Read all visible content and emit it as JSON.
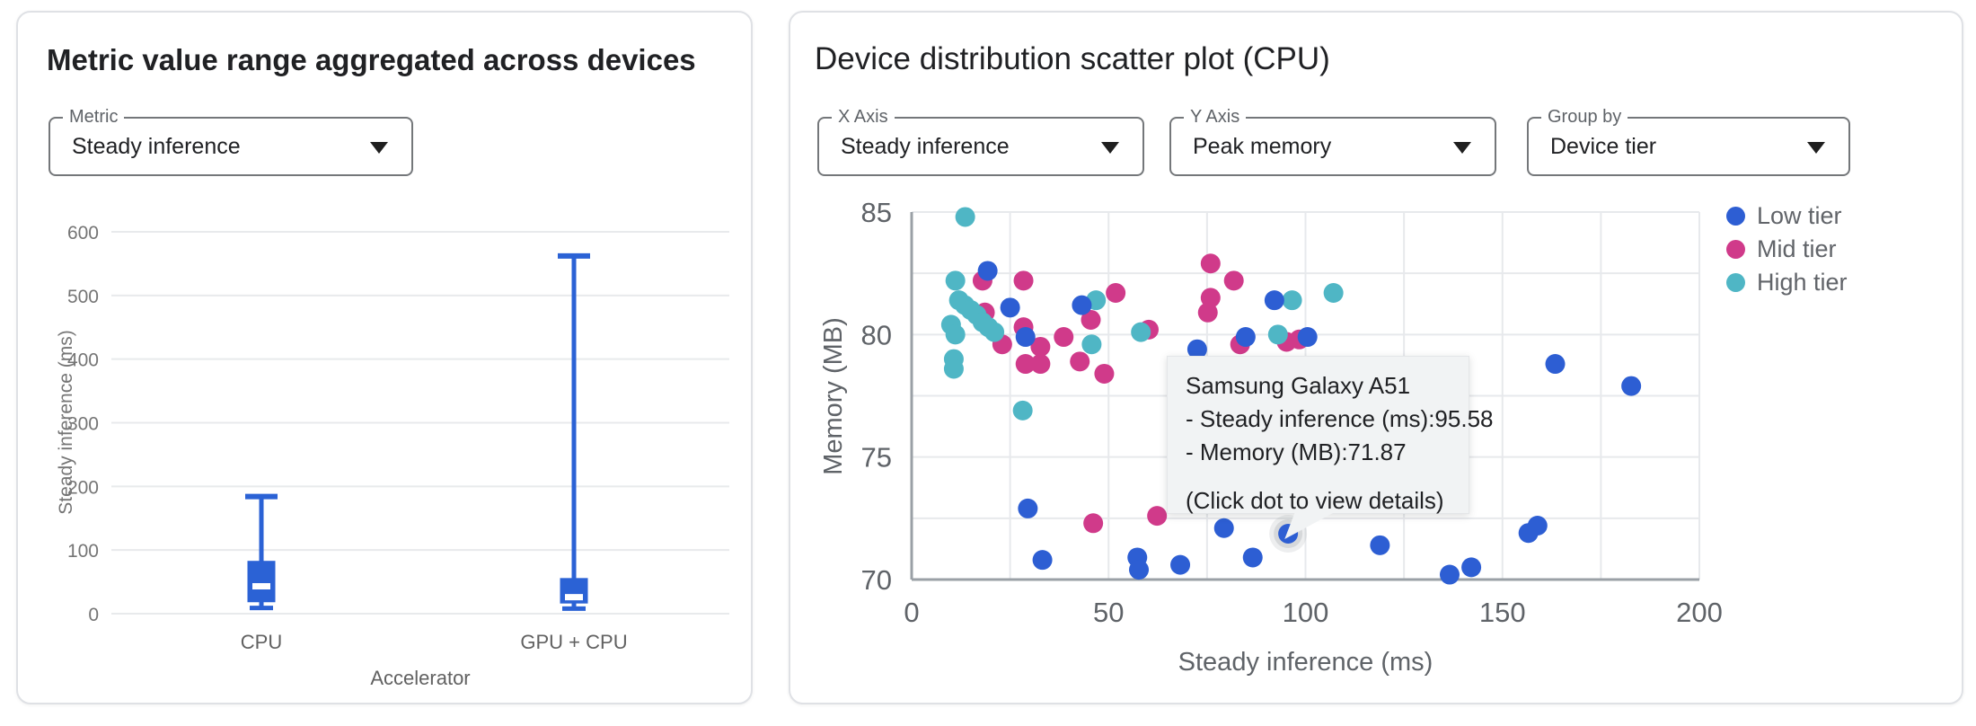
{
  "left_panel": {
    "title": "Metric value range aggregated across devices",
    "metric_dropdown": {
      "label": "Metric",
      "value": "Steady inference"
    }
  },
  "right_panel": {
    "title": "Device distribution scatter plot (CPU)",
    "controls": [
      {
        "label": "X Axis",
        "value": "Steady inference"
      },
      {
        "label": "Y Axis",
        "value": "Peak memory"
      },
      {
        "label": "Group by",
        "value": "Device tier"
      }
    ],
    "legend": [
      {
        "label": "Low tier",
        "color": "#2d5ed3"
      },
      {
        "label": "Mid tier",
        "color": "#d03a8a"
      },
      {
        "label": "High tier",
        "color": "#4fb6c5"
      }
    ],
    "tooltip": {
      "title": "Samsung Galaxy A51",
      "line1": "- Steady inference (ms):95.58",
      "line2": "- Memory (MB):71.87",
      "hint": "(Click dot to view details)"
    }
  },
  "chart_data": [
    {
      "type": "boxplot",
      "title": "Metric value range aggregated across devices",
      "xlabel": "Accelerator",
      "ylabel": "Steady inference (ms)",
      "categories": [
        "CPU",
        "GPU + CPU"
      ],
      "ylim": [
        0,
        600
      ],
      "yticks": [
        0,
        100,
        200,
        300,
        400,
        500,
        600
      ],
      "grid": true,
      "color": "#2b62d5",
      "boxes": [
        {
          "category": "CPU",
          "min": 9,
          "q1": 18,
          "median": 43,
          "q3": 83,
          "max": 184
        },
        {
          "category": "GPU + CPU",
          "min": 8,
          "q1": 16,
          "median": 26,
          "q3": 56,
          "max": 562
        }
      ]
    },
    {
      "type": "scatter",
      "xlabel": "Steady inference (ms)",
      "ylabel": "Memory (MB)",
      "xlim": [
        0,
        200
      ],
      "ylim": [
        70,
        85
      ],
      "xticks": [
        0,
        50,
        100,
        150,
        200
      ],
      "yticks": [
        70,
        75,
        80,
        85
      ],
      "grid": true,
      "legend_position": "right",
      "series": [
        {
          "name": "Low tier",
          "color": "#2d5ed3",
          "points": [
            [
              19.3,
              82.6
            ],
            [
              25,
              81.1
            ],
            [
              28.9,
              79.9
            ],
            [
              43.2,
              81.2
            ],
            [
              72.5,
              79.4
            ],
            [
              84.8,
              79.9
            ],
            [
              92.1,
              81.4
            ],
            [
              100.5,
              79.9
            ],
            [
              29.5,
              72.9
            ],
            [
              33.2,
              70.8
            ],
            [
              57.3,
              70.9
            ],
            [
              57.7,
              70.4
            ],
            [
              68.2,
              70.6
            ],
            [
              79.3,
              72.1
            ],
            [
              86.6,
              70.9
            ],
            [
              118.9,
              71.4
            ],
            [
              136.6,
              70.2
            ],
            [
              142.1,
              70.5
            ],
            [
              156.6,
              71.9
            ],
            [
              158.9,
              72.2
            ],
            [
              163.4,
              78.8
            ],
            [
              182.7,
              77.9
            ]
          ]
        },
        {
          "name": "Mid tier",
          "color": "#d03a8a",
          "points": [
            [
              18,
              82.2
            ],
            [
              28.4,
              82.2
            ],
            [
              18.6,
              80.9
            ],
            [
              23,
              79.6
            ],
            [
              28.4,
              80.3
            ],
            [
              32.7,
              79.5
            ],
            [
              28.9,
              78.8
            ],
            [
              32.7,
              78.8
            ],
            [
              38.6,
              79.9
            ],
            [
              42.7,
              78.9
            ],
            [
              45.5,
              80.6
            ],
            [
              48.9,
              78.4
            ],
            [
              51.8,
              81.7
            ],
            [
              60.2,
              80.2
            ],
            [
              46.1,
              72.3
            ],
            [
              62.3,
              72.6
            ],
            [
              75.2,
              80.9
            ],
            [
              75.9,
              81.5
            ],
            [
              75.9,
              82.9
            ],
            [
              81.8,
              82.2
            ],
            [
              83.4,
              79.6
            ],
            [
              95.2,
              79.7
            ],
            [
              98.4,
              79.8
            ]
          ]
        },
        {
          "name": "High tier",
          "color": "#4fb6c5",
          "points": [
            [
              13.6,
              84.8
            ],
            [
              11.1,
              82.2
            ],
            [
              10,
              80.4
            ],
            [
              11.1,
              80
            ],
            [
              12,
              81.4
            ],
            [
              13.5,
              81.2
            ],
            [
              15,
              81
            ],
            [
              16.5,
              80.8
            ],
            [
              18,
              80.5
            ],
            [
              19.5,
              80.3
            ],
            [
              21,
              80.1
            ],
            [
              10.7,
              79
            ],
            [
              10.7,
              78.6
            ],
            [
              28.2,
              76.9
            ],
            [
              45.7,
              79.6
            ],
            [
              46.8,
              81.4
            ],
            [
              58.2,
              80.1
            ],
            [
              93,
              80
            ],
            [
              96.6,
              81.4
            ],
            [
              107.1,
              81.7
            ]
          ]
        }
      ],
      "highlighted_point": {
        "series": "Low tier",
        "x": 95.58,
        "y": 71.87,
        "device": "Samsung Galaxy A51"
      }
    }
  ]
}
